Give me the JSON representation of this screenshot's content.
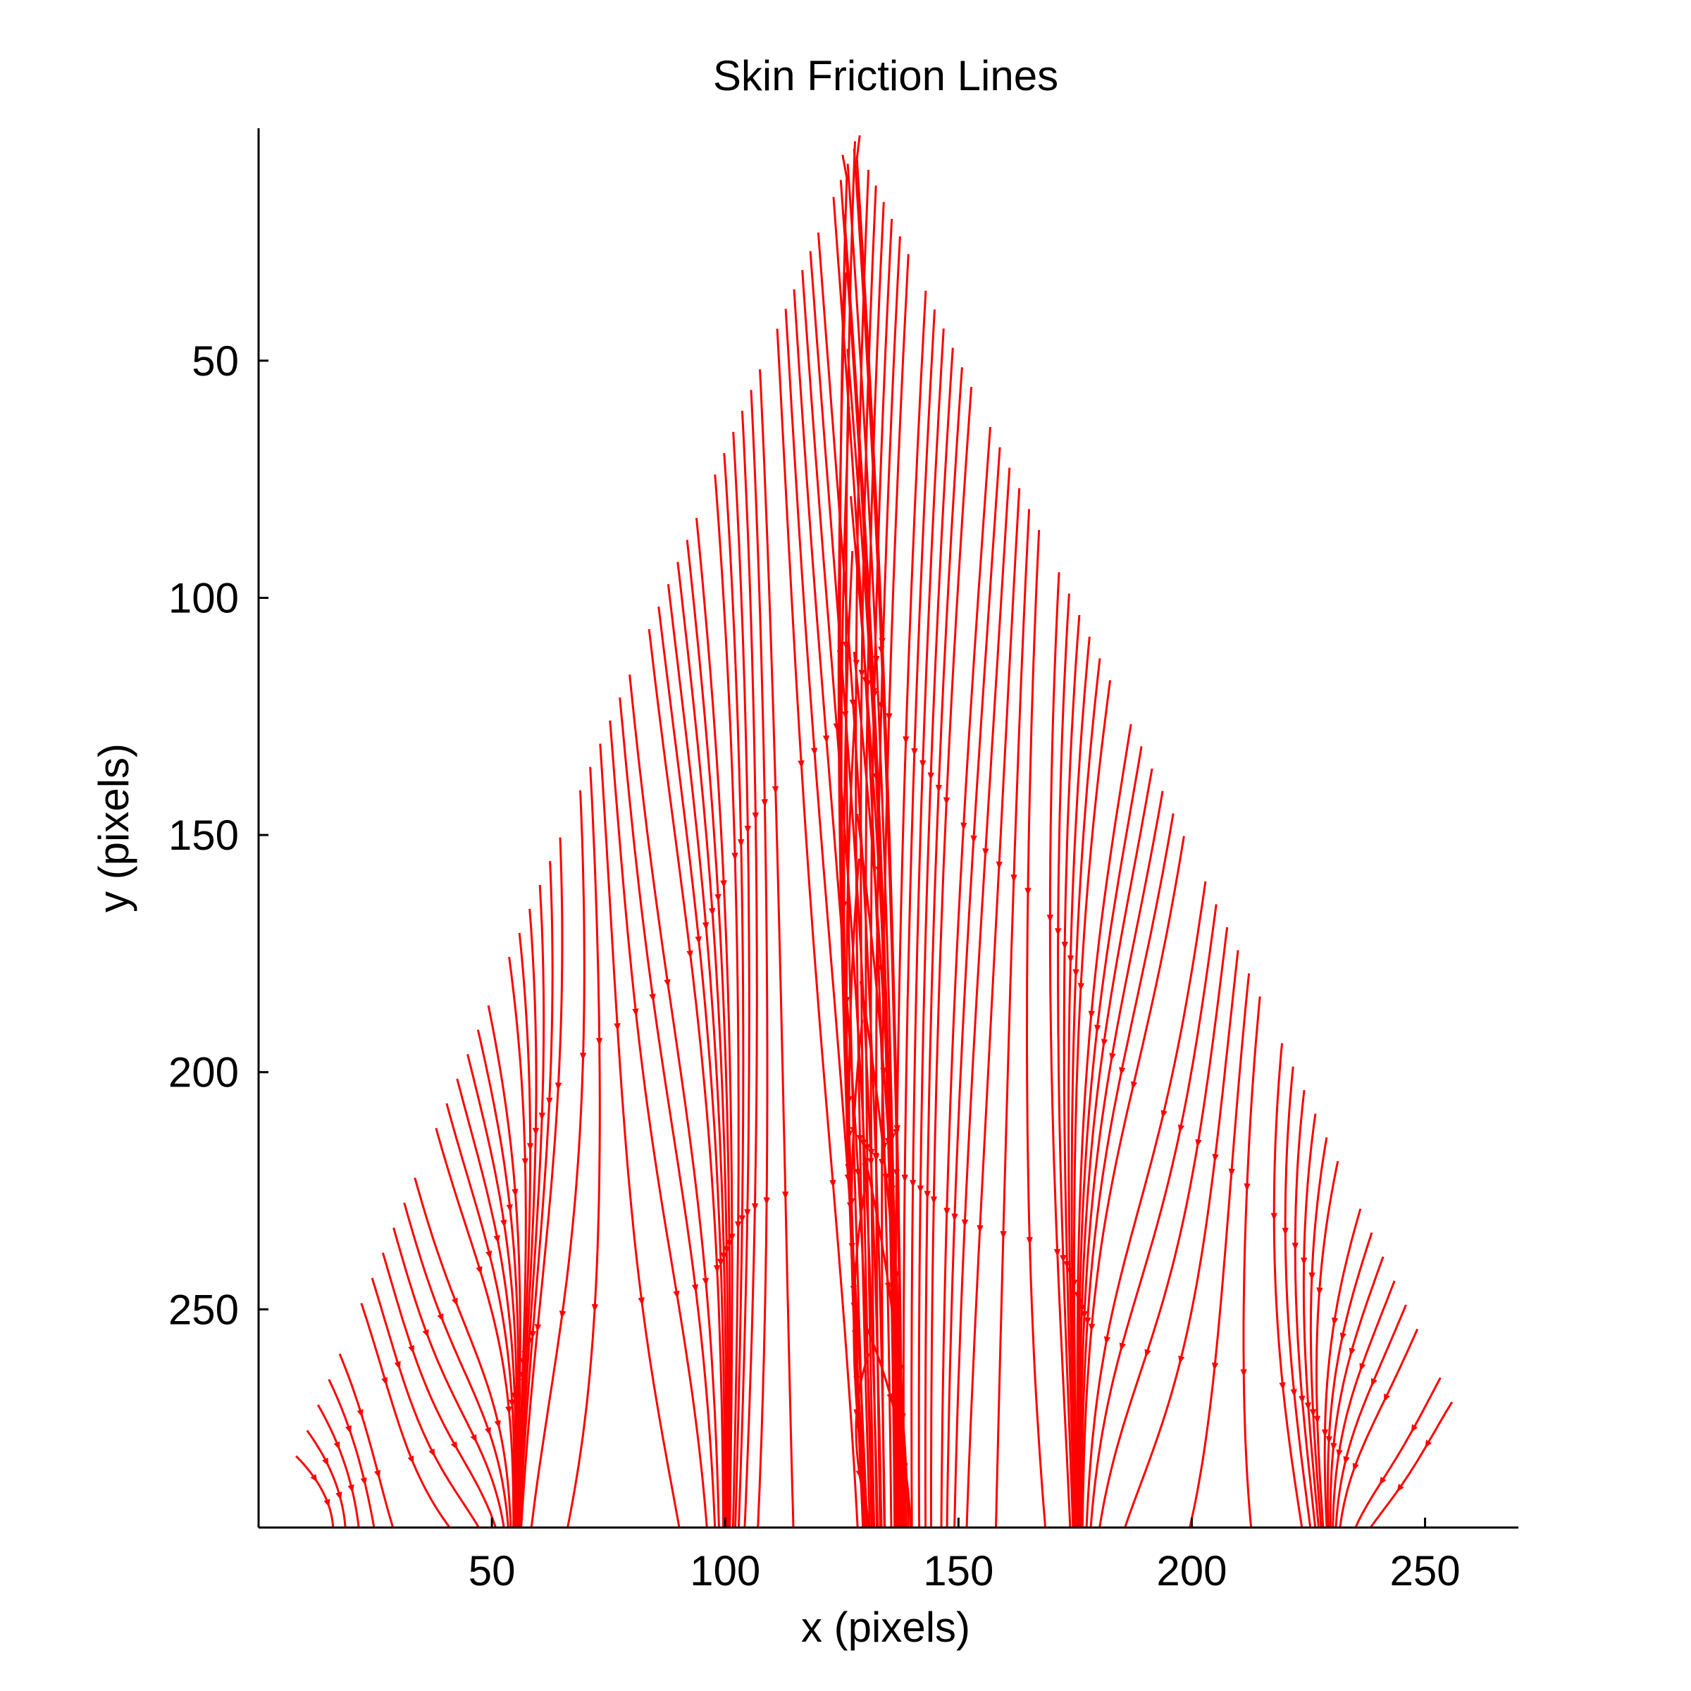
{
  "chart_data": {
    "type": "line",
    "title": "Skin Friction Lines",
    "xlabel": "x (pixels)",
    "ylabel": "y (pixels)",
    "xlim": [
      0,
      270
    ],
    "ylim": [
      296,
      1
    ],
    "y_axis_reversed": true,
    "x_ticks": [
      50,
      100,
      150,
      200,
      250
    ],
    "y_ticks": [
      50,
      100,
      150,
      200,
      250
    ],
    "grid": false,
    "box": false,
    "line_color": "#ff0000",
    "domain_shape": {
      "type": "triangle",
      "apex": [
        128,
        1
      ],
      "base_left": [
        0,
        296
      ],
      "base_right": [
        270,
        296
      ]
    },
    "streamline_count": 120,
    "flow_direction": "downward, from apex toward base",
    "convergence_lines_x": [
      51,
      58,
      94,
      103,
      126,
      131,
      148,
      152,
      172,
      177,
      185,
      230
    ],
    "arrowheads": true
  }
}
